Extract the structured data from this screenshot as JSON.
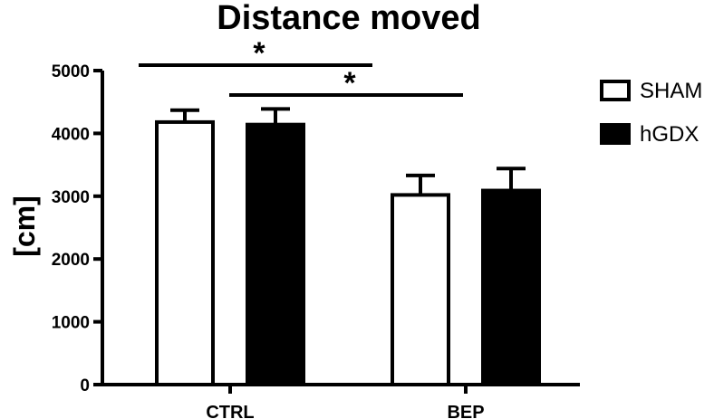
{
  "chart_data": {
    "type": "bar",
    "title": "Distance moved",
    "ylabel": "[cm]",
    "xlabel": "",
    "categories": [
      "CTRL",
      "BEP"
    ],
    "series": [
      {
        "name": "SHAM",
        "values": [
          4180,
          3020
        ],
        "errors": [
          190,
          310
        ],
        "color": "#ffffff"
      },
      {
        "name": "hGDX",
        "values": [
          4140,
          3090
        ],
        "errors": [
          250,
          350
        ],
        "color": "#000000"
      }
    ],
    "ylim": [
      0,
      5000
    ],
    "yticks": [
      0,
      1000,
      2000,
      3000,
      4000,
      5000
    ],
    "ytick_labels": [
      "0",
      "1000",
      "2000",
      "3000",
      "4000",
      "5000"
    ],
    "grid": false,
    "legend_position": "right",
    "significance": [
      {
        "from": "CTRL SHAM",
        "to": "BEP SHAM",
        "label": "*"
      },
      {
        "from": "CTRL hGDX",
        "to": "BEP hGDX",
        "label": "*"
      }
    ]
  }
}
